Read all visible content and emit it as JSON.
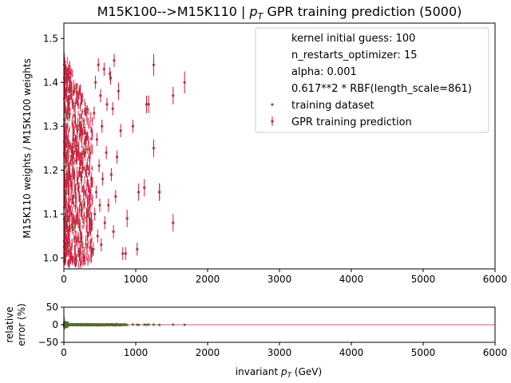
{
  "chart_data": [
    {
      "type": "scatter",
      "title_prefix": "M15K100-->M15K110 | ",
      "title_pt": "p",
      "title_pt_sub": "T",
      "title_suffix": " GPR training prediction (5000)",
      "ylabel": "M15K110 weights / M15K100 weights",
      "xlim": [
        0,
        6000
      ],
      "ylim": [
        0.975,
        1.535
      ],
      "xticks": [
        "0",
        "1000",
        "2000",
        "3000",
        "4000",
        "5000",
        "6000"
      ],
      "xtick_values": [
        0,
        1000,
        2000,
        3000,
        4000,
        5000,
        6000
      ],
      "yticks": [
        "1.0",
        "1.1",
        "1.2",
        "1.3",
        "1.4",
        "1.5"
      ],
      "ytick_values": [
        1.0,
        1.1,
        1.2,
        1.3,
        1.4,
        1.5
      ],
      "legend": {
        "placement": "upper-right",
        "text_entries": [
          "kernel initial guess: 100",
          "n_restarts_optimizer: 15",
          "alpha: 0.001",
          "0.617**2 * RBF(length_scale=861)"
        ],
        "series_entries": [
          "training dataset",
          "GPR training prediction"
        ]
      },
      "colors": {
        "training": "#556b2f",
        "prediction": "#dc143c"
      },
      "series": [
        {
          "name": "training dataset",
          "x": [
            1680,
            1520,
            1520,
            1330,
            1330,
            1250,
            1250,
            1180,
            1150,
            1120,
            1040,
            1020,
            960,
            880,
            860,
            820,
            790,
            760,
            740,
            720,
            700,
            690,
            680,
            660,
            650,
            640,
            620,
            600,
            590,
            570,
            560,
            540,
            530,
            520,
            510,
            500,
            490,
            480,
            470,
            460,
            450,
            440,
            430,
            420,
            410
          ],
          "y": [
            1.4,
            1.37,
            1.08,
            1.15,
            1.15,
            1.44,
            1.25,
            1.35,
            1.35,
            1.16,
            1.15,
            1.02,
            1.3,
            1.09,
            1.01,
            1.01,
            1.29,
            1.38,
            1.23,
            1.14,
            1.45,
            1.06,
            1.34,
            1.19,
            1.41,
            1.42,
            1.12,
            1.35,
            1.24,
            1.08,
            1.43,
            1.18,
            1.3,
            1.03,
            1.37,
            1.12,
            1.21,
            1.44,
            1.05,
            1.27,
            1.15,
            1.4,
            1.1,
            1.33,
            1.02
          ],
          "yerr": [
            0.025,
            0.02,
            0.02,
            0.02,
            0.02,
            0.025,
            0.02,
            0.02,
            0.02,
            0.02,
            0.02,
            0.015,
            0.015,
            0.02,
            0.015,
            0.015,
            0.015,
            0.02,
            0.015,
            0.015,
            0.015,
            0.015,
            0.015,
            0.015,
            0.015,
            0.015,
            0.015,
            0.015,
            0.015,
            0.015,
            0.015,
            0.015,
            0.015,
            0.015,
            0.015,
            0.015,
            0.015,
            0.015,
            0.015,
            0.015,
            0.015,
            0.015,
            0.015,
            0.015,
            0.015
          ]
        }
      ],
      "dense_region": {
        "x_range": [
          0,
          400
        ],
        "y_range": [
          0.985,
          1.47
        ],
        "count": 4955
      }
    },
    {
      "type": "scatter",
      "ylabel_line1": "relative",
      "ylabel_line2": "error (%)",
      "xlabel_prefix": "invariant ",
      "xlabel_pt": "p",
      "xlabel_pt_sub": "T",
      "xlabel_suffix": " (GeV)",
      "xlim": [
        0,
        6000
      ],
      "ylim": [
        -50,
        50
      ],
      "xticks": [
        "0",
        "1000",
        "2000",
        "3000",
        "4000",
        "5000",
        "6000"
      ],
      "xtick_values": [
        0,
        1000,
        2000,
        3000,
        4000,
        5000,
        6000
      ],
      "yticks": [
        "50",
        "0",
        "−50"
      ],
      "ytick_values": [
        50,
        0,
        -50
      ],
      "reference_line": 0,
      "series": [
        {
          "name": "relative error",
          "x": [
            1680,
            1520,
            1330,
            1250,
            1180,
            1150,
            1120,
            1040,
            1020,
            960,
            880,
            860,
            820,
            790,
            760,
            740,
            720,
            700
          ],
          "y": [
            0,
            0.4,
            -0.3,
            0.2,
            0.5,
            -0.2,
            0.3,
            -0.4,
            0.1,
            0.6,
            -0.5,
            0.2,
            -0.1,
            0.4,
            -0.3,
            0.2,
            0.5,
            -0.6
          ]
        }
      ]
    }
  ]
}
